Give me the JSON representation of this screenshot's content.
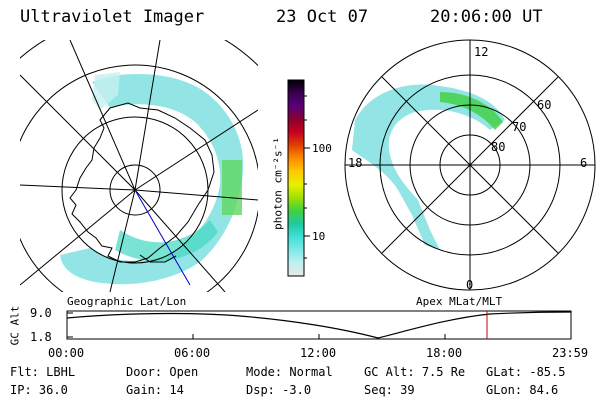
{
  "header": {
    "title": "Ultraviolet Imager",
    "date": "23 Oct 07",
    "time": "20:06:00 UT"
  },
  "colorbar": {
    "unit_label": "photon cm⁻²s⁻¹",
    "tick_100": "100",
    "tick_10": "10",
    "stops": [
      "#000000",
      "#3a0050",
      "#5a0078",
      "#8a0030",
      "#c80020",
      "#e04000",
      "#ff8c00",
      "#ffc800",
      "#e8f000",
      "#a0e000",
      "#40d040",
      "#20c8a0",
      "#40e0d8",
      "#80e8e8",
      "#c0f0f0",
      "#e8e8e8"
    ]
  },
  "left_map": {
    "caption": "Geographic Lat/Lon"
  },
  "right_map": {
    "caption": "Apex MLat/MLT",
    "mlt_labels": {
      "top": "12",
      "bottom": "0",
      "left": "18",
      "right": "6"
    },
    "lat_labels": [
      "60",
      "70",
      "80"
    ]
  },
  "altitude_panel": {
    "axis_label": "GC Alt",
    "ytick_top": "9.0",
    "ytick_bottom": "1.8",
    "xticks": [
      "00:00",
      "06:00",
      "12:00",
      "18:00",
      "23:59"
    ],
    "cursor_color": "#cc0000"
  },
  "status": {
    "filter_label": "Flt:",
    "filter_value": "LBHL",
    "door_label": "Door:",
    "door_value": "Open",
    "mode_label": "Mode:",
    "mode_value": "Normal",
    "gcalt_label": "GC Alt:",
    "gcalt_value": "7.5 Re",
    "glat_label": "GLat:",
    "glat_value": "-85.5",
    "ip_label": "IP:",
    "ip_value": "36.0",
    "gain_label": "Gain:",
    "gain_value": "14",
    "dsp_label": "Dsp:",
    "dsp_value": "-3.0",
    "seq_label": "Seq:",
    "seq_value": "39",
    "glon_label": "GLon:",
    "glon_value": "84.6"
  }
}
